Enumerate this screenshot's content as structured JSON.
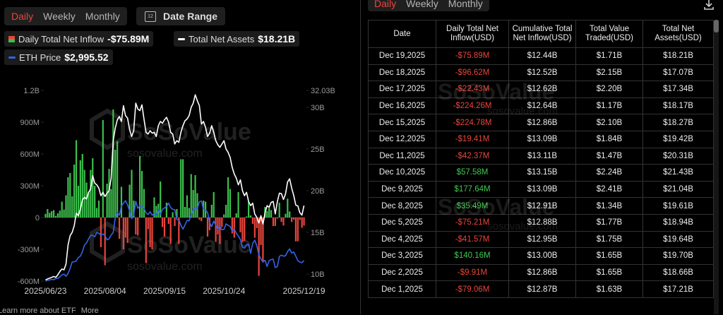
{
  "tabs": [
    "Daily",
    "Weekly",
    "Monthly"
  ],
  "date_range": {
    "icon": "12",
    "label": "Date Range"
  },
  "watermark": "SoSoValue",
  "watermark_url": "sosovalue.com",
  "footer": {
    "text": "Learn more about ETF",
    "link": "More"
  },
  "chart_data": {
    "type": "bar",
    "categories": [
      "2025/06/23",
      null,
      null,
      null,
      null,
      null,
      null,
      null,
      null,
      null,
      null,
      null,
      null,
      null,
      null,
      null,
      null,
      null,
      null,
      null,
      null,
      null,
      null,
      null,
      null,
      null,
      null,
      null,
      null,
      "2025/08/04",
      null,
      null,
      null,
      null,
      null,
      null,
      null,
      null,
      null,
      null,
      null,
      null,
      null,
      null,
      null,
      null,
      null,
      null,
      null,
      null,
      null,
      null,
      null,
      null,
      null,
      null,
      null,
      null,
      "2025/09/15",
      null,
      null,
      null,
      null,
      null,
      null,
      null,
      null,
      null,
      null,
      null,
      null,
      null,
      null,
      null,
      null,
      null,
      null,
      null,
      null,
      null,
      null,
      null,
      null,
      null,
      null,
      null,
      null,
      "2025/10/24",
      null,
      null,
      null,
      null,
      null,
      null,
      null,
      null,
      null,
      null,
      null,
      null,
      null,
      null,
      null,
      null,
      null,
      null,
      null,
      null,
      null,
      null,
      null,
      null,
      null,
      null,
      null,
      null,
      null,
      null,
      null,
      null,
      null,
      null,
      null,
      null,
      null,
      null,
      "2025/12/19"
    ],
    "series": [
      {
        "name": "Daily Total Net Inflow",
        "type": "bar",
        "axis": "y",
        "color": "#3cbf4c",
        "negative_color": "#e8453c",
        "values": [
          35,
          80,
          45,
          60,
          70,
          15,
          40,
          65,
          150,
          75,
          210,
          380,
          420,
          200,
          500,
          730,
          300,
          540,
          600,
          450,
          330,
          240,
          450,
          560,
          300,
          90,
          160,
          -280,
          920,
          -450,
          320,
          460,
          270,
          1020,
          640,
          720,
          -200,
          290,
          -300,
          -190,
          -240,
          310,
          450,
          160,
          -160,
          -170,
          580,
          440,
          270,
          -430,
          -110,
          -280,
          -300,
          190,
          110,
          130,
          340,
          -90,
          -180,
          140,
          -60,
          -250,
          50,
          -80,
          80,
          -250,
          550,
          550,
          100,
          210,
          90,
          410,
          260,
          400,
          230,
          -20,
          -35,
          160,
          150,
          -180,
          -120,
          120,
          240,
          -230,
          -160,
          -250,
          -90,
          30,
          120,
          380,
          270,
          -150,
          -190,
          40,
          240,
          -140,
          -230,
          -220,
          10,
          150,
          20,
          -60,
          -190,
          -100,
          -550,
          -260,
          -420,
          100,
          60,
          90,
          70,
          -80,
          -79.06,
          -9.91,
          140.16,
          -41.57,
          -75.21,
          35.49,
          177.64,
          57.58,
          -42.37,
          -19.41,
          -224.78,
          -224.26,
          -22.43,
          -96.62,
          -75.89
        ]
      },
      {
        "name": "Total Net Assets",
        "type": "line",
        "axis": "y2",
        "color": "#ffffff",
        "values": [
          9.3,
          9.4,
          9.5,
          9.6,
          9.7,
          9.6,
          9.9,
          10.3,
          10.6,
          10.5,
          11.2,
          13.5,
          14.6,
          15.0,
          15.8,
          17.3,
          17.0,
          17.8,
          18.9,
          19.2,
          19.0,
          19.8,
          20.2,
          21.8,
          20.9,
          20.7,
          20.3,
          19.4,
          19.8,
          19.3,
          19.7,
          20.0,
          21.5,
          26.0,
          27.5,
          28.5,
          28.9,
          28.3,
          30.2,
          29.0,
          28.7,
          27.3,
          26.5,
          27.2,
          30.5,
          29.8,
          29.6,
          30.3,
          28.6,
          27.0,
          26.8,
          27.2,
          26.9,
          27.0,
          26.5,
          27.8,
          28.3,
          28.1,
          28.5,
          28.8,
          28.2,
          27.0,
          26.8,
          25.6,
          26.0,
          25.8,
          27.0,
          27.8,
          28.4,
          28.6,
          29.0,
          30.0,
          30.5,
          31.5,
          30.8,
          30.2,
          28.0,
          28.3,
          27.6,
          26.5,
          26.9,
          27.8,
          27.0,
          26.0,
          25.5,
          25.2,
          25.6,
          26.0,
          25.0,
          24.6,
          24.0,
          22.8,
          22.0,
          21.5,
          20.7,
          21.3,
          20.0,
          19.4,
          19.8,
          18.7,
          18.2,
          18.5,
          17.2,
          16.8,
          16.1,
          17.0,
          16.0,
          17.3,
          18.2,
          18.0,
          18.6,
          18.7,
          17.21,
          18.66,
          19.7,
          19.64,
          18.94,
          19.61,
          21.04,
          21.43,
          20.31,
          19.42,
          18.27,
          18.17,
          17.34,
          17.07,
          18.21
        ]
      },
      {
        "name": "ETH Price",
        "type": "line",
        "axis": "y3",
        "color": "#3563e6",
        "values": [
          2400,
          2420,
          2430,
          2450,
          2440,
          2470,
          2480,
          2520,
          2580,
          2600,
          2540,
          2620,
          2770,
          2950,
          2960,
          2980,
          3080,
          3120,
          3250,
          3440,
          3500,
          3620,
          3720,
          3720,
          3680,
          3800,
          3780,
          3720,
          3760,
          3710,
          3590,
          3620,
          3730,
          3800,
          4220,
          4380,
          4300,
          4560,
          4650,
          4720,
          4600,
          4420,
          4200,
          4300,
          4700,
          4500,
          4580,
          4550,
          4500,
          4370,
          4320,
          4400,
          4300,
          4350,
          4310,
          4470,
          4320,
          4470,
          4510,
          4550,
          4650,
          4520,
          4470,
          4460,
          4180,
          4170,
          4010,
          3900,
          4020,
          4150,
          4140,
          4310,
          4480,
          4510,
          4490,
          4690,
          4710,
          4470,
          4450,
          4380,
          4090,
          3970,
          4130,
          4020,
          3900,
          3980,
          3880,
          3890,
          4050,
          4010,
          3980,
          3850,
          3900,
          3780,
          3700,
          3600,
          3380,
          3350,
          3450,
          3460,
          3200,
          3490,
          3580,
          3420,
          3160,
          3040,
          2950,
          3000,
          2820,
          2990,
          3020,
          3030,
          2790,
          2820,
          3110,
          3150,
          3120,
          3130,
          3250,
          3330,
          3210,
          3240,
          3120,
          2990,
          2950,
          2930,
          2995
        ]
      }
    ],
    "legend_values": [
      "-$75.89M",
      "$18.21B",
      "$2,995.52"
    ],
    "ylim": [
      -600,
      1200
    ],
    "yticks": [
      {
        "value": -600,
        "label": "-600M"
      },
      {
        "value": -300,
        "label": "-300M"
      },
      0,
      {
        "value": 300,
        "label": "300M"
      },
      {
        "value": 600,
        "label": "600M"
      },
      {
        "value": 900,
        "label": "900M"
      },
      {
        "value": 1200,
        "label": "1.2B"
      }
    ],
    "y2lim": [
      9.15,
      32.03
    ],
    "y2ticks": [
      {
        "value": 10,
        "label": "10B"
      },
      {
        "value": 15,
        "label": "15B"
      },
      {
        "value": 20,
        "label": "20B"
      },
      {
        "value": 25,
        "label": "25B"
      },
      {
        "value": 30,
        "label": "30B"
      },
      {
        "value": 32.03,
        "label": "32.03B"
      }
    ],
    "y3lim": [
      2400,
      7900
    ],
    "grid": false
  },
  "table": {
    "tabs": [
      "Daily",
      "Weekly",
      "Monthly"
    ],
    "columns": [
      "Date",
      "Daily Total Net Inflow(USD)",
      "Cumulative Total Net Inflow(USD)",
      "Total Value Traded(USD)",
      "Total Net Assets(USD)"
    ],
    "rows": [
      [
        "Dec 19,2025",
        "-$75.89M",
        "$12.44B",
        "$1.71B",
        "$18.21B"
      ],
      [
        "Dec 18,2025",
        "-$96.62M",
        "$12.52B",
        "$2.15B",
        "$17.07B"
      ],
      [
        "Dec 17,2025",
        "-$22.43M",
        "$12.62B",
        "$2.20B",
        "$17.34B"
      ],
      [
        "Dec 16,2025",
        "-$224.26M",
        "$12.64B",
        "$1.17B",
        "$18.17B"
      ],
      [
        "Dec 15,2025",
        "-$224.78M",
        "$12.86B",
        "$2.10B",
        "$18.27B"
      ],
      [
        "Dec 12,2025",
        "-$19.41M",
        "$13.09B",
        "$1.84B",
        "$19.42B"
      ],
      [
        "Dec 11,2025",
        "-$42.37M",
        "$13.11B",
        "$1.47B",
        "$20.31B"
      ],
      [
        "Dec 10,2025",
        "$57.58M",
        "$13.15B",
        "$2.24B",
        "$21.43B"
      ],
      [
        "Dec 9,2025",
        "$177.64M",
        "$13.09B",
        "$2.41B",
        "$21.04B"
      ],
      [
        "Dec 8,2025",
        "$35.49M",
        "$12.91B",
        "$1.34B",
        "$19.61B"
      ],
      [
        "Dec 5,2025",
        "-$75.21M",
        "$12.88B",
        "$1.77B",
        "$18.94B"
      ],
      [
        "Dec 4,2025",
        "-$41.57M",
        "$12.95B",
        "$1.75B",
        "$19.64B"
      ],
      [
        "Dec 3,2025",
        "$140.16M",
        "$13.00B",
        "$1.65B",
        "$19.70B"
      ],
      [
        "Dec 2,2025",
        "-$9.91M",
        "$12.86B",
        "$1.65B",
        "$18.66B"
      ],
      [
        "Dec 1,2025",
        "-$79.06M",
        "$12.87B",
        "$1.63B",
        "$17.21B"
      ]
    ]
  }
}
